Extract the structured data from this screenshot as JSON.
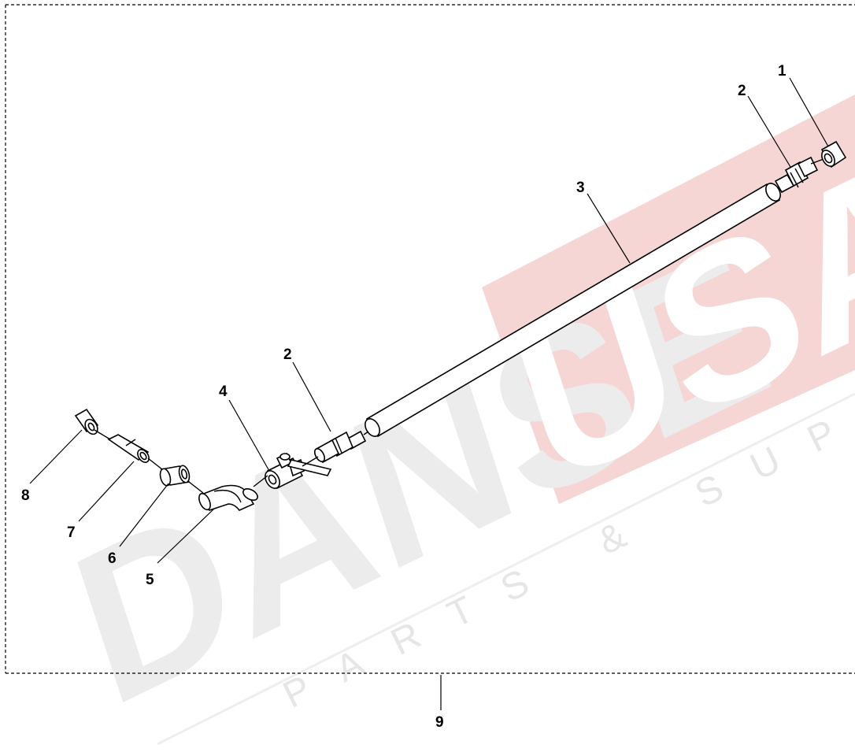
{
  "callouts": {
    "c1": "1",
    "c2a": "2",
    "c3": "3",
    "c2b": "2",
    "c4": "4",
    "c5": "5",
    "c6": "6",
    "c7": "7",
    "c8": "8",
    "c9": "9"
  },
  "watermark": {
    "brand_left": "DANSE",
    "brand_right": "USA",
    "tagline": "PARTS & SUPPLIES",
    "colors": {
      "gray": "#ebebeb",
      "red": "#f5d3d3"
    }
  }
}
